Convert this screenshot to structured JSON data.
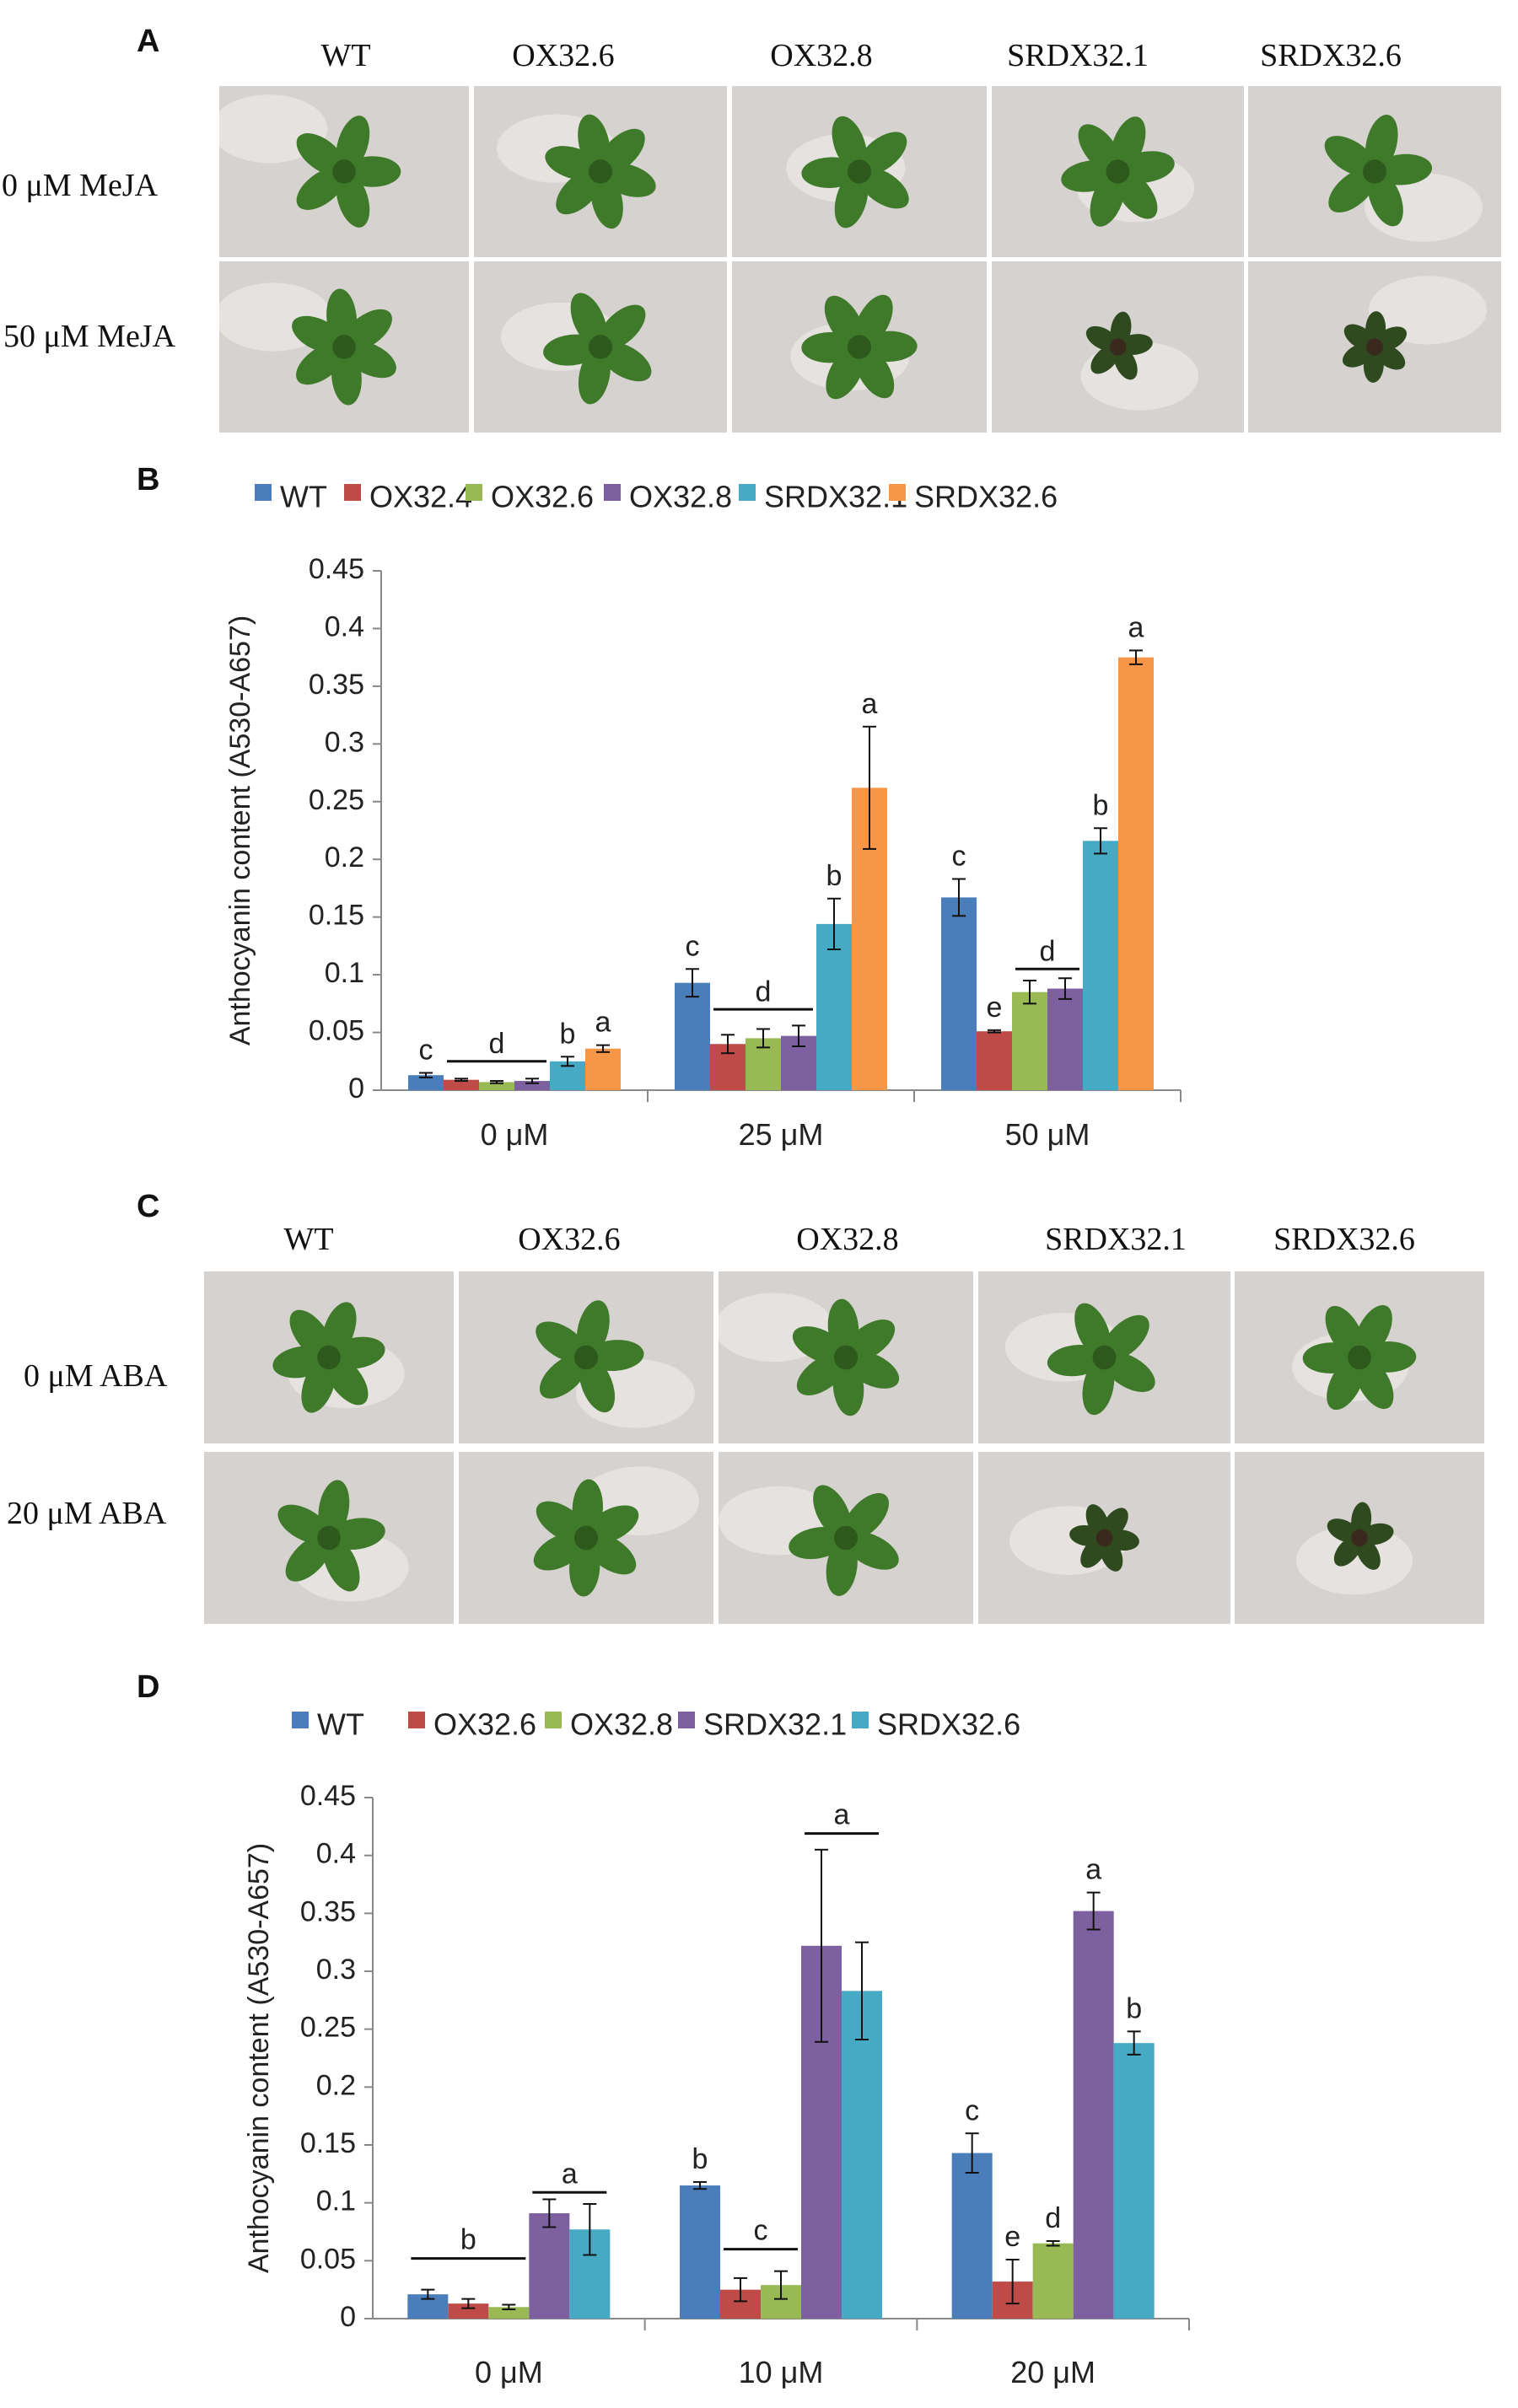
{
  "panel_a": {
    "letter": "A",
    "columns": [
      "WT",
      "OX32.6",
      "OX32.8",
      "SRDX32.1",
      "SRDX32.6"
    ],
    "rows": [
      "0 μM MeJA",
      "50 μM MeJA"
    ]
  },
  "panel_c": {
    "letter": "C",
    "columns": [
      "WT",
      "OX32.6",
      "OX32.8",
      "SRDX32.1",
      "SRDX32.6"
    ],
    "rows": [
      "0 μM ABA",
      "20 μM ABA"
    ]
  },
  "colors": {
    "WT": "#4a7ebb",
    "OX32.4": "#be4b48",
    "OX32.6_B": "#98b954",
    "OX32.8_B": "#7d60a0",
    "SRDX32.1_B": "#46aac5",
    "SRDX32.6_B": "#f79646",
    "OX32.6_D": "#be4b48",
    "OX32.8_D": "#98b954",
    "SRDX32.1_D": "#7d60a0",
    "SRDX32.6_D": "#46aac5"
  },
  "chart_data": [
    {
      "panel": "B",
      "type": "bar",
      "ylabel": "Anthocyanin content (A530-A657)",
      "ylim": [
        0,
        0.45
      ],
      "yticks": [
        "0",
        "0.05",
        "0.1",
        "0.15",
        "0.2",
        "0.25",
        "0.3",
        "0.35",
        "0.4",
        "0.45"
      ],
      "categories": [
        "0 μM",
        "25 μM",
        "50 μM"
      ],
      "series": [
        {
          "name": "WT",
          "color": "#4a7ebb",
          "values": [
            0.013,
            0.093,
            0.167
          ],
          "errors": [
            0.002,
            0.012,
            0.016
          ]
        },
        {
          "name": "OX32.4",
          "color": "#be4b48",
          "values": [
            0.009,
            0.04,
            0.051
          ],
          "errors": [
            0.001,
            0.008,
            0.001
          ]
        },
        {
          "name": "OX32.6",
          "color": "#98b954",
          "values": [
            0.007,
            0.045,
            0.085
          ],
          "errors": [
            0.001,
            0.008,
            0.01
          ]
        },
        {
          "name": "OX32.8",
          "color": "#7d60a0",
          "values": [
            0.008,
            0.047,
            0.088
          ],
          "errors": [
            0.002,
            0.009,
            0.009
          ]
        },
        {
          "name": "SRDX32.1",
          "color": "#46aac5",
          "values": [
            0.025,
            0.144,
            0.216
          ],
          "errors": [
            0.004,
            0.022,
            0.011
          ]
        },
        {
          "name": "SRDX32.6",
          "color": "#f79646",
          "values": [
            0.036,
            0.262,
            0.375
          ],
          "errors": [
            0.003,
            0.053,
            0.006
          ]
        }
      ],
      "letters": [
        {
          "category": 0,
          "series": 0,
          "text": "c"
        },
        {
          "category": 0,
          "span": [
            1,
            3
          ],
          "text": "d",
          "line_y": 0.025,
          "text_y": 0.032
        },
        {
          "category": 0,
          "series": 4,
          "text": "b"
        },
        {
          "category": 0,
          "series": 5,
          "text": "a"
        },
        {
          "category": 1,
          "series": 0,
          "text": "c"
        },
        {
          "category": 1,
          "span": [
            1,
            3
          ],
          "text": "d",
          "line_y": 0.07,
          "text_y": 0.077
        },
        {
          "category": 1,
          "series": 4,
          "text": "b"
        },
        {
          "category": 1,
          "series": 5,
          "text": "a"
        },
        {
          "category": 2,
          "series": 0,
          "text": "c"
        },
        {
          "category": 2,
          "series": 1,
          "text": "e"
        },
        {
          "category": 2,
          "span": [
            2,
            3
          ],
          "text": "d",
          "line_y": 0.105,
          "text_y": 0.112
        },
        {
          "category": 2,
          "series": 4,
          "text": "b"
        },
        {
          "category": 2,
          "series": 5,
          "text": "a"
        }
      ]
    },
    {
      "panel": "D",
      "type": "bar",
      "ylabel": "Anthocyanin content (A530-A657)",
      "ylim": [
        0,
        0.45
      ],
      "yticks": [
        "0",
        "0.05",
        "0.1",
        "0.15",
        "0.2",
        "0.25",
        "0.3",
        "0.35",
        "0.4",
        "0.45"
      ],
      "categories": [
        "0 μM",
        "10 μM",
        "20 μM"
      ],
      "series": [
        {
          "name": "WT",
          "color": "#4a7ebb",
          "values": [
            0.021,
            0.115,
            0.143
          ],
          "errors": [
            0.004,
            0.003,
            0.017
          ]
        },
        {
          "name": "OX32.6",
          "color": "#be4b48",
          "values": [
            0.013,
            0.025,
            0.032
          ],
          "errors": [
            0.004,
            0.01,
            0.019
          ]
        },
        {
          "name": "OX32.8",
          "color": "#98b954",
          "values": [
            0.01,
            0.029,
            0.065
          ],
          "errors": [
            0.002,
            0.012,
            0.002
          ]
        },
        {
          "name": "SRDX32.1",
          "color": "#7d60a0",
          "values": [
            0.091,
            0.322,
            0.352
          ],
          "errors": [
            0.012,
            0.083,
            0.016
          ]
        },
        {
          "name": "SRDX32.6",
          "color": "#46aac5",
          "values": [
            0.077,
            0.283,
            0.238
          ],
          "errors": [
            0.022,
            0.042,
            0.01
          ]
        }
      ],
      "letters": [
        {
          "category": 0,
          "span": [
            0,
            2
          ],
          "text": "b",
          "line_y": 0.052,
          "text_y": 0.06
        },
        {
          "category": 0,
          "span": [
            3,
            4
          ],
          "text": "a",
          "line_y": 0.109,
          "text_y": 0.117
        },
        {
          "category": 1,
          "series": 0,
          "text": "b"
        },
        {
          "category": 1,
          "span": [
            1,
            2
          ],
          "text": "c",
          "line_y": 0.06,
          "text_y": 0.068
        },
        {
          "category": 1,
          "span": [
            3,
            4
          ],
          "text": "a",
          "line_y": 0.419,
          "text_y": 0.427
        },
        {
          "category": 2,
          "series": 0,
          "text": "c"
        },
        {
          "category": 2,
          "series": 1,
          "text": "e"
        },
        {
          "category": 2,
          "series": 2,
          "text": "d"
        },
        {
          "category": 2,
          "series": 3,
          "text": "a"
        },
        {
          "category": 2,
          "series": 4,
          "text": "b"
        }
      ]
    }
  ]
}
